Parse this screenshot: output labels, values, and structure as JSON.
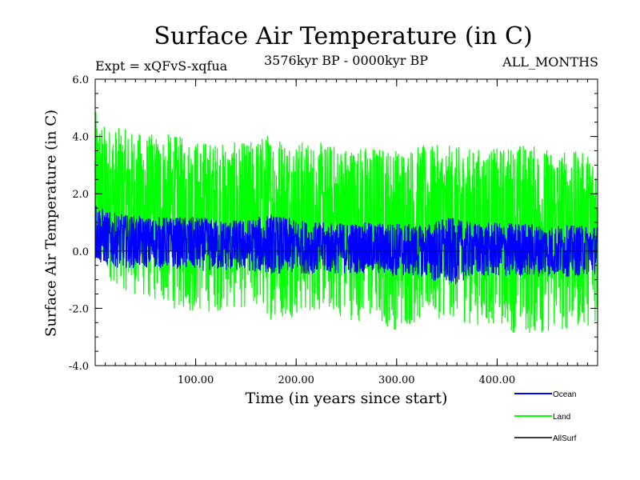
{
  "chart_data": {
    "type": "line",
    "title": "Surface Air Temperature (in C)",
    "subtitle_left": "Expt = xQFvS-xqfua",
    "subtitle_center": "3576kyr BP - 0000kyr BP",
    "subtitle_right": "ALL_MONTHS",
    "xlabel": "Time (in years since start)",
    "ylabel": "Surface Air Temperature (in C)",
    "xlim": [
      0,
      500
    ],
    "ylim": [
      -4,
      6
    ],
    "x_ticks": [
      100,
      200,
      300,
      400
    ],
    "x_tick_labels": [
      "100.00",
      "200.00",
      "300.00",
      "400.00"
    ],
    "y_ticks": [
      -4,
      -2,
      0,
      2,
      4,
      6
    ],
    "y_tick_labels": [
      "-4.0",
      "-2.0",
      "0.0",
      "2.0",
      "4.0",
      "6.0"
    ],
    "series": [
      {
        "name": "Land",
        "color": "#00ff00",
        "x": [
          0,
          10,
          25,
          50,
          75,
          100,
          125,
          150,
          175,
          200,
          225,
          250,
          275,
          300,
          325,
          350,
          375,
          400,
          425,
          450,
          475,
          500
        ],
        "mean": [
          2.0,
          1.9,
          1.8,
          1.7,
          1.6,
          1.55,
          1.5,
          1.5,
          1.45,
          1.4,
          1.35,
          1.3,
          1.3,
          1.25,
          1.25,
          1.2,
          1.25,
          1.25,
          1.2,
          1.2,
          1.25,
          1.2
        ],
        "max": [
          4.9,
          4.4,
          4.3,
          4.1,
          4.1,
          3.9,
          3.8,
          3.8,
          4.2,
          3.9,
          3.8,
          3.7,
          3.7,
          3.6,
          3.7,
          3.7,
          3.6,
          3.6,
          3.8,
          3.6,
          3.5,
          3.4
        ],
        "min": [
          -0.6,
          -0.9,
          -1.3,
          -1.7,
          -2.0,
          -2.2,
          -2.1,
          -2.0,
          -2.4,
          -2.3,
          -2.1,
          -2.4,
          -2.5,
          -2.8,
          -2.5,
          -2.3,
          -2.6,
          -2.6,
          -3.0,
          -2.9,
          -2.8,
          -2.5
        ]
      },
      {
        "name": "Ocean",
        "color": "#0000ff",
        "x": [
          0,
          10,
          25,
          50,
          75,
          100,
          125,
          150,
          175,
          200,
          225,
          250,
          275,
          300,
          325,
          350,
          375,
          400,
          425,
          450,
          475,
          500
        ],
        "mean": [
          0.6,
          0.5,
          0.4,
          0.35,
          0.3,
          0.3,
          0.25,
          0.25,
          0.2,
          0.2,
          0.2,
          0.15,
          0.15,
          0.1,
          0.1,
          0.1,
          0.1,
          0.1,
          0.1,
          0.1,
          0.1,
          0.1
        ],
        "max": [
          1.8,
          1.4,
          1.3,
          1.2,
          1.2,
          1.2,
          1.1,
          1.1,
          1.3,
          1.1,
          1.0,
          1.0,
          1.0,
          1.0,
          0.9,
          1.2,
          1.0,
          1.0,
          1.0,
          0.9,
          0.9,
          0.9
        ],
        "min": [
          -0.4,
          -0.5,
          -0.6,
          -0.6,
          -0.6,
          -0.7,
          -0.7,
          -0.7,
          -0.8,
          -0.8,
          -0.8,
          -0.8,
          -0.8,
          -0.9,
          -0.9,
          -1.3,
          -0.9,
          -0.9,
          -0.9,
          -0.9,
          -0.9,
          -0.8
        ]
      },
      {
        "name": "AllSurf",
        "color": "#000000",
        "x": [
          0,
          500
        ],
        "mean": [
          0.0,
          0.0
        ]
      }
    ],
    "legend": [
      "Ocean",
      "Land",
      "AllSurf"
    ],
    "legend_position": "bottom-right"
  }
}
